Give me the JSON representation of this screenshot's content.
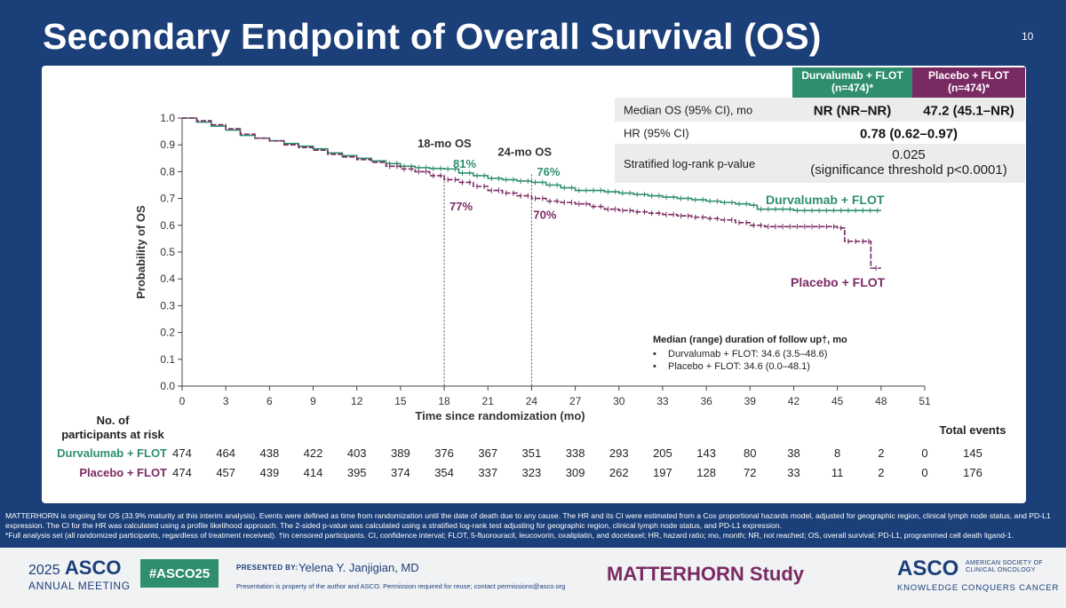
{
  "slide": {
    "title": "Secondary Endpoint of Overall Survival (OS)",
    "number": "10",
    "footnote_line1": "MATTERHORN is ongoing for OS (33.9% maturity at this interim analysis). Events were defined as time from randomization until the date of death due to any cause. The HR and its CI were estimated from a Cox proportional hazards model, adjusted for geographic region, clinical lymph node status, and PD-L1 expression. The CI for the HR was calculated using a profile likelihood approach. The 2-sided p-value was calculated using a stratified log-rank test adjusting for geographic region, clinical lymph node status, and PD-L1 expression.",
    "footnote_line2": "*Full analysis set (all randomized participants, regardless of treatment received). †In censored participants. CI, confidence interval; FLOT, 5-fluorouracil, leucovorin, oxaliplatin, and docetaxel; HR, hazard ratio; mo, month; NR, not reached; OS, overall survival; PD-L1, programmed cell death ligand-1."
  },
  "colors": {
    "durva": "#2f8f6d",
    "placebo": "#7a2a63",
    "navy": "#1b3f79"
  },
  "results_table": {
    "col1_header": [
      "Durvalumab + FLOT",
      "(n=474)*"
    ],
    "col2_header": [
      "Placebo + FLOT",
      "(n=474)*"
    ],
    "rows": [
      {
        "label": "Median OS (95% CI), mo",
        "durva": "NR (NR–NR)",
        "placebo": "47.2 (45.1–NR)"
      },
      {
        "label": "HR (95% CI)",
        "combined": "0.78 (0.62–0.97)"
      },
      {
        "label": "Stratified log-rank p-value",
        "combined": [
          "0.025",
          "(significance threshold p<0.0001)"
        ]
      }
    ]
  },
  "chart_data": {
    "type": "line",
    "subtype": "kaplan-meier",
    "xlabel": "Time since randomization (mo)",
    "ylabel": "Probability of OS",
    "xlim": [
      0,
      51
    ],
    "ylim": [
      0,
      1.0
    ],
    "x_ticks": [
      0,
      3,
      6,
      9,
      12,
      15,
      18,
      21,
      24,
      27,
      30,
      33,
      36,
      39,
      42,
      45,
      48,
      51
    ],
    "y_ticks": [
      0.0,
      0.1,
      0.2,
      0.3,
      0.4,
      0.5,
      0.6,
      0.7,
      0.8,
      0.9,
      1.0
    ],
    "y_tick_labels": [
      "0.0",
      "0.1",
      "0.2",
      "0.3",
      "0.4",
      "0.5",
      "0.6",
      "0.7",
      "0.8",
      "0.9",
      "1.0"
    ],
    "series": [
      {
        "name": "Durvalumab + FLOT",
        "x": [
          0,
          1,
          2,
          3,
          4,
          5,
          6,
          7,
          8,
          9,
          10,
          11,
          12,
          13,
          14,
          15,
          16,
          17,
          18,
          19,
          20,
          21,
          22,
          23,
          24,
          25,
          26,
          27,
          28,
          29,
          30,
          31,
          32,
          33,
          34,
          35,
          36,
          37,
          38,
          39,
          39.5,
          40,
          42,
          44,
          46,
          47,
          48
        ],
        "y": [
          1.0,
          0.985,
          0.97,
          0.955,
          0.935,
          0.925,
          0.915,
          0.905,
          0.895,
          0.885,
          0.87,
          0.86,
          0.85,
          0.84,
          0.83,
          0.82,
          0.815,
          0.812,
          0.81,
          0.795,
          0.785,
          0.775,
          0.77,
          0.765,
          0.76,
          0.75,
          0.74,
          0.73,
          0.73,
          0.725,
          0.72,
          0.715,
          0.71,
          0.705,
          0.7,
          0.695,
          0.69,
          0.685,
          0.68,
          0.675,
          0.66,
          0.66,
          0.655,
          0.655,
          0.655,
          0.655,
          0.655
        ]
      },
      {
        "name": "Placebo + FLOT",
        "x": [
          0,
          1,
          2,
          3,
          4,
          5,
          6,
          7,
          8,
          9,
          10,
          11,
          12,
          13,
          14,
          15,
          16,
          17,
          18,
          19,
          20,
          21,
          22,
          23,
          24,
          25,
          26,
          27,
          28,
          29,
          30,
          31,
          32,
          33,
          34,
          35,
          36,
          37,
          38,
          39,
          40,
          42,
          44,
          45,
          45.5,
          46,
          47,
          47.3,
          48
        ],
        "y": [
          1.0,
          0.99,
          0.975,
          0.96,
          0.94,
          0.925,
          0.915,
          0.9,
          0.89,
          0.88,
          0.865,
          0.855,
          0.845,
          0.835,
          0.82,
          0.81,
          0.8,
          0.785,
          0.77,
          0.76,
          0.745,
          0.73,
          0.72,
          0.71,
          0.7,
          0.69,
          0.685,
          0.68,
          0.67,
          0.66,
          0.655,
          0.65,
          0.645,
          0.64,
          0.635,
          0.63,
          0.625,
          0.62,
          0.61,
          0.6,
          0.595,
          0.595,
          0.595,
          0.59,
          0.54,
          0.54,
          0.54,
          0.44,
          0.44
        ]
      }
    ],
    "landmarks": [
      {
        "label": "18-mo OS",
        "x": 18,
        "durva": "81%",
        "placebo": "77%"
      },
      {
        "label": "24-mo OS",
        "x": 24,
        "durva": "76%",
        "placebo": "70%"
      }
    ],
    "curve_labels": {
      "durva": "Durvalumab + FLOT",
      "placebo": "Placebo + FLOT"
    },
    "followup_box": {
      "title": "Median (range) duration of follow up†, mo",
      "items": [
        "Durvalumab + FLOT: 34.6 (3.5–48.6)",
        "Placebo + FLOT: 34.6 (0.0–48.1)"
      ]
    },
    "risk_table": {
      "title": [
        "No. of",
        "participants at risk"
      ],
      "total_header": "Total events",
      "rows": [
        {
          "name": "Durvalumab + FLOT",
          "values": [
            474,
            464,
            438,
            422,
            403,
            389,
            376,
            367,
            351,
            338,
            293,
            205,
            143,
            80,
            38,
            8,
            2,
            0
          ],
          "total": 145
        },
        {
          "name": "Placebo + FLOT",
          "values": [
            474,
            457,
            439,
            414,
            395,
            374,
            354,
            337,
            323,
            309,
            262,
            197,
            128,
            72,
            33,
            11,
            2,
            0
          ],
          "total": 176
        }
      ]
    }
  },
  "footer": {
    "asco_year": "2025",
    "asco_name": "ASCO",
    "annual_meeting": "ANNUAL MEETING",
    "hashtag": "#ASCO25",
    "presented_by": "PRESENTED BY:",
    "presenter": "Yelena Y. Janjigian, MD",
    "property_note": "Presentation is property of the author and ASCO. Permission required for reuse; contact permissions@asco.org",
    "study_name": "MATTERHORN Study",
    "asco_logo": "ASCO",
    "society_name": "AMERICAN SOCIETY OF CLINICAL ONCOLOGY",
    "tagline": "KNOWLEDGE CONQUERS CANCER"
  }
}
